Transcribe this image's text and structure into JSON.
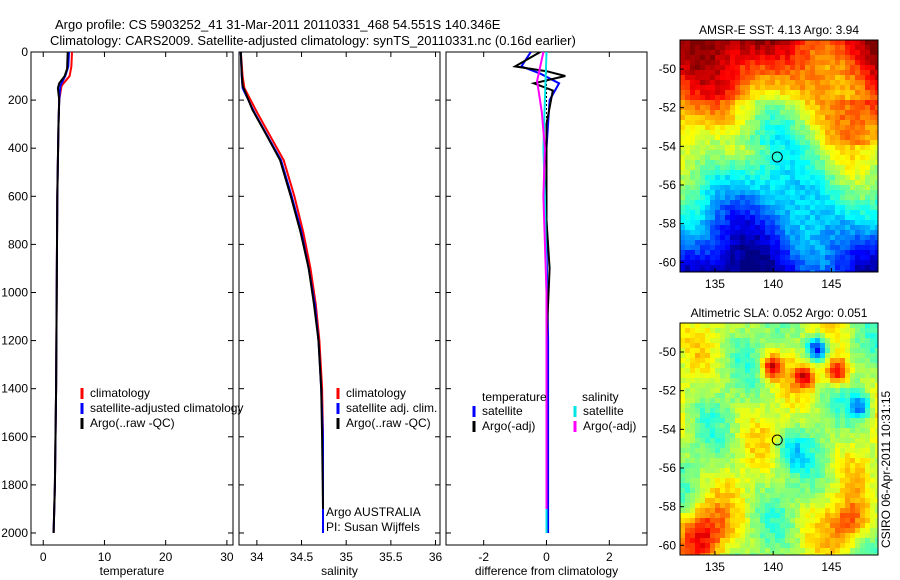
{
  "header": {
    "line1": "Argo profile: CS 5903252_41 31-Mar-2011 20110331_468 54.551S 140.346E",
    "line2": "Climatology: CARS2009. Satellite-adjusted climatology: synTS_20110331.nc (0.16d earlier)"
  },
  "colors": {
    "climatology": "#ff0000",
    "satellite": "#0000ff",
    "argo": "#000000",
    "salinity_satellite": "#00e5e5",
    "salinity_argo": "#ff00ff"
  },
  "chart_data": [
    {
      "id": "temperature",
      "type": "line",
      "xlabel": "temperature",
      "ylabel": "",
      "xlim": [
        -2,
        31
      ],
      "ylim": [
        0,
        2050
      ],
      "y_reversed": true,
      "xticks": [
        0,
        10,
        20,
        30
      ],
      "yticks": [
        0,
        200,
        400,
        600,
        800,
        1000,
        1200,
        1400,
        1600,
        1800,
        2000
      ],
      "legend": [
        "climatology",
        "satellite-adjusted climatology",
        "Argo(..raw -QC)"
      ],
      "series": [
        {
          "name": "climatology",
          "color_key": "climatology",
          "points": [
            [
              4.7,
              0
            ],
            [
              4.6,
              60
            ],
            [
              4.3,
              100
            ],
            [
              3.0,
              140
            ],
            [
              2.6,
              200
            ],
            [
              2.5,
              300
            ],
            [
              2.3,
              600
            ],
            [
              2.2,
              1000
            ],
            [
              2.1,
              1400
            ],
            [
              1.9,
              1800
            ],
            [
              1.7,
              2000
            ]
          ]
        },
        {
          "name": "satellite-adjusted climatology",
          "color_key": "satellite",
          "points": [
            [
              4.2,
              0
            ],
            [
              4.1,
              60
            ],
            [
              3.6,
              100
            ],
            [
              2.8,
              140
            ],
            [
              2.6,
              200
            ],
            [
              2.5,
              300
            ],
            [
              2.3,
              600
            ],
            [
              2.2,
              1000
            ],
            [
              2.1,
              1400
            ],
            [
              1.9,
              1800
            ],
            [
              1.7,
              2000
            ]
          ]
        },
        {
          "name": "Argo(..raw -QC)",
          "color_key": "argo",
          "points": [
            [
              4.0,
              0
            ],
            [
              3.9,
              70
            ],
            [
              3.5,
              100
            ],
            [
              2.6,
              130
            ],
            [
              2.4,
              150
            ],
            [
              2.6,
              200
            ],
            [
              2.5,
              300
            ],
            [
              2.3,
              600
            ],
            [
              2.2,
              1000
            ],
            [
              2.1,
              1400
            ],
            [
              1.9,
              1800
            ],
            [
              1.7,
              2000
            ]
          ]
        }
      ]
    },
    {
      "id": "salinity",
      "type": "line",
      "xlabel": "salinity",
      "ylabel": "",
      "xlim": [
        33.8,
        36.05
      ],
      "ylim": [
        0,
        2050
      ],
      "y_reversed": true,
      "xticks": [
        34,
        34.5,
        35,
        35.5,
        36
      ],
      "xticklabels": [
        "34",
        "34.5",
        "35",
        "35.5",
        "36"
      ],
      "yticks": [
        0,
        200,
        400,
        600,
        800,
        1000,
        1200,
        1400,
        1600,
        1800,
        2000
      ],
      "legend": [
        "climatology",
        "satellite adj. clim.",
        "Argo(..raw -QC)"
      ],
      "annotations": [
        "Argo AUSTRALIA",
        "PI: Susan Wijffels"
      ],
      "series": [
        {
          "name": "climatology",
          "color_key": "climatology",
          "points": [
            [
              33.82,
              0
            ],
            [
              33.84,
              100
            ],
            [
              33.86,
              150
            ],
            [
              34.0,
              250
            ],
            [
              34.15,
              350
            ],
            [
              34.3,
              450
            ],
            [
              34.42,
              600
            ],
            [
              34.52,
              750
            ],
            [
              34.6,
              900
            ],
            [
              34.66,
              1050
            ],
            [
              34.7,
              1200
            ],
            [
              34.73,
              1400
            ],
            [
              34.74,
              1600
            ],
            [
              34.74,
              2000
            ]
          ]
        },
        {
          "name": "satellite adj. clim.",
          "color_key": "satellite",
          "points": [
            [
              33.82,
              0
            ],
            [
              33.83,
              100
            ],
            [
              33.84,
              150
            ],
            [
              33.97,
              250
            ],
            [
              34.12,
              350
            ],
            [
              34.27,
              450
            ],
            [
              34.39,
              600
            ],
            [
              34.5,
              750
            ],
            [
              34.58,
              900
            ],
            [
              34.65,
              1050
            ],
            [
              34.69,
              1200
            ],
            [
              34.72,
              1400
            ],
            [
              34.74,
              1600
            ],
            [
              34.74,
              2000
            ]
          ]
        },
        {
          "name": "Argo(..raw -QC)",
          "color_key": "argo",
          "points": [
            [
              33.82,
              0
            ],
            [
              33.83,
              90
            ],
            [
              33.84,
              140
            ],
            [
              33.95,
              240
            ],
            [
              34.1,
              340
            ],
            [
              34.26,
              450
            ],
            [
              34.38,
              600
            ],
            [
              34.49,
              750
            ],
            [
              34.58,
              900
            ],
            [
              34.64,
              1050
            ],
            [
              34.69,
              1200
            ],
            [
              34.72,
              1400
            ],
            [
              34.73,
              1600
            ],
            [
              34.74,
              1900
            ]
          ]
        }
      ]
    },
    {
      "id": "difference",
      "type": "line",
      "xlabel": "difference from climatology",
      "ylabel": "",
      "xlim": [
        -3.2,
        3.2
      ],
      "ylim": [
        0,
        2050
      ],
      "y_reversed": true,
      "xticks": [
        -2,
        0,
        2
      ],
      "yticks": [
        0,
        200,
        400,
        600,
        800,
        1000,
        1200,
        1400,
        1600,
        1800,
        2000
      ],
      "legend_headers": [
        "temperature",
        "salinity"
      ],
      "legend": [
        "satellite",
        "Argo(-adj)",
        "satellite",
        "Argo(-adj)"
      ],
      "series": [
        {
          "name": "temperature satellite",
          "color_key": "satellite",
          "points": [
            [
              -0.5,
              0
            ],
            [
              -0.8,
              60
            ],
            [
              -0.2,
              90
            ],
            [
              0.4,
              130
            ],
            [
              0.1,
              200
            ],
            [
              0.0,
              400
            ],
            [
              0.0,
              800
            ],
            [
              0.05,
              1200
            ],
            [
              0.05,
              2000
            ]
          ]
        },
        {
          "name": "temperature Argo(-adj)",
          "color_key": "argo",
          "points": [
            [
              -0.2,
              0
            ],
            [
              -1.0,
              60
            ],
            [
              0.0,
              80
            ],
            [
              0.6,
              100
            ],
            [
              -0.4,
              130
            ],
            [
              0.2,
              160
            ],
            [
              0.0,
              300
            ],
            [
              0.0,
              700
            ],
            [
              0.1,
              900
            ],
            [
              0.0,
              1200
            ],
            [
              0.0,
              2000
            ]
          ]
        },
        {
          "name": "salinity satellite",
          "color_key": "salinity_satellite",
          "points": [
            [
              0.0,
              0
            ],
            [
              -0.05,
              200
            ],
            [
              -0.1,
              400
            ],
            [
              -0.05,
              600
            ],
            [
              0.0,
              1000
            ],
            [
              0.0,
              2000
            ]
          ]
        },
        {
          "name": "salinity Argo(-adj)",
          "color_key": "salinity_argo",
          "points": [
            [
              -0.1,
              0
            ],
            [
              -0.3,
              120
            ],
            [
              -0.15,
              250
            ],
            [
              -0.05,
              400
            ],
            [
              -0.1,
              600
            ],
            [
              0.0,
              1000
            ],
            [
              0.0,
              1900
            ]
          ]
        }
      ]
    },
    {
      "id": "sst_map",
      "type": "heatmap",
      "title": "AMSR-E SST: 4.13 Argo: 3.94",
      "xlim": [
        132,
        149
      ],
      "ylim": [
        -60.5,
        -48.5
      ],
      "xticks": [
        135,
        140,
        145
      ],
      "yticks": [
        -50,
        -52,
        -54,
        -56,
        -58,
        -60
      ],
      "marker": [
        140.35,
        -54.55
      ]
    },
    {
      "id": "sla_map",
      "type": "heatmap",
      "title": "Altimetric SLA: 0.052 Argo: 0.051",
      "xlim": [
        132,
        149
      ],
      "ylim": [
        -60.5,
        -48.5
      ],
      "xticks": [
        135,
        140,
        145
      ],
      "yticks": [
        -50,
        -52,
        -54,
        -56,
        -58,
        -60
      ],
      "marker": [
        140.35,
        -54.55
      ]
    }
  ],
  "footer": {
    "credit": "CSIRO 06-Apr-2011 10:31:15"
  }
}
